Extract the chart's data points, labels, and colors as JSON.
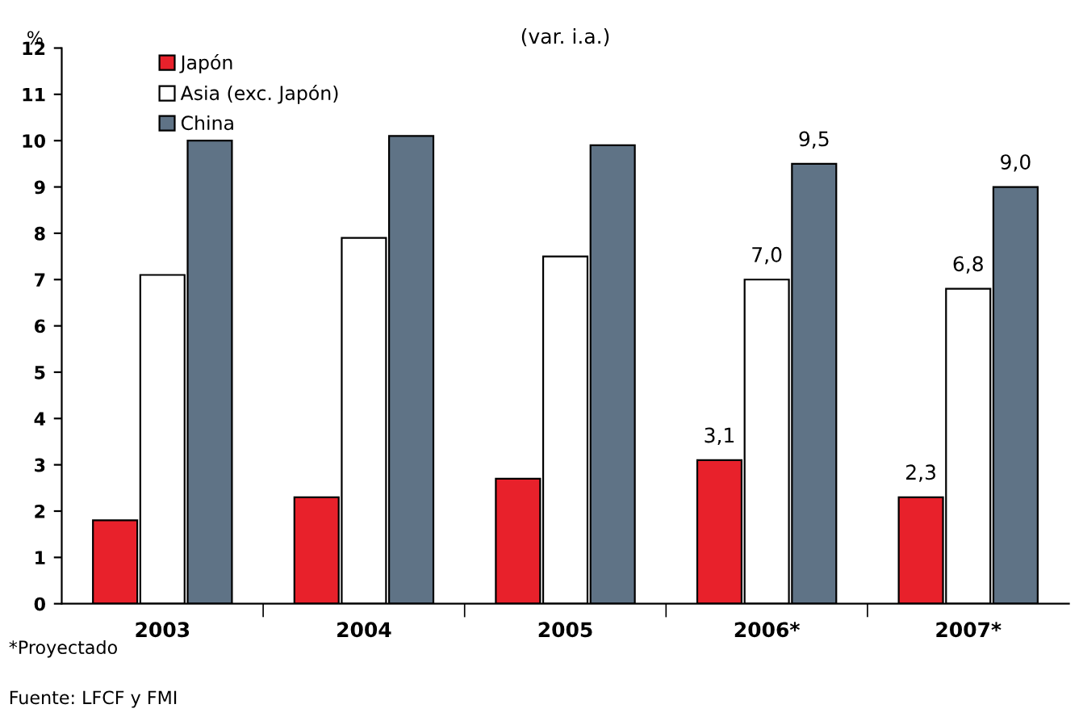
{
  "chart_data": {
    "type": "bar",
    "title": "(var. i.a.)",
    "ylabel": "%",
    "categories": [
      "2003",
      "2004",
      "2005",
      "2006*",
      "2007*"
    ],
    "series": [
      {
        "name": "Japón",
        "color": "#e8212b",
        "values": [
          1.8,
          2.3,
          2.7,
          3.1,
          2.3
        ],
        "value_labels": [
          null,
          null,
          null,
          "3,1",
          "2,3"
        ]
      },
      {
        "name": "Asia (exc. Japón)",
        "color": "#ffffff",
        "values": [
          7.1,
          7.9,
          7.5,
          7.0,
          6.8
        ],
        "value_labels": [
          null,
          null,
          null,
          "7,0",
          "6,8"
        ]
      },
      {
        "name": "China",
        "color": "#5f7386",
        "values": [
          10.0,
          10.1,
          9.9,
          9.5,
          9.0
        ],
        "value_labels": [
          null,
          null,
          null,
          "9,5",
          "9,0"
        ]
      }
    ],
    "ylim": [
      0,
      12
    ],
    "yticks": [
      0,
      1,
      2,
      3,
      4,
      5,
      6,
      7,
      8,
      9,
      10,
      11,
      12
    ],
    "grid": false,
    "legend": "top left",
    "annotations": [
      "*Proyectado",
      "Fuente: LFCF y FMI"
    ]
  }
}
